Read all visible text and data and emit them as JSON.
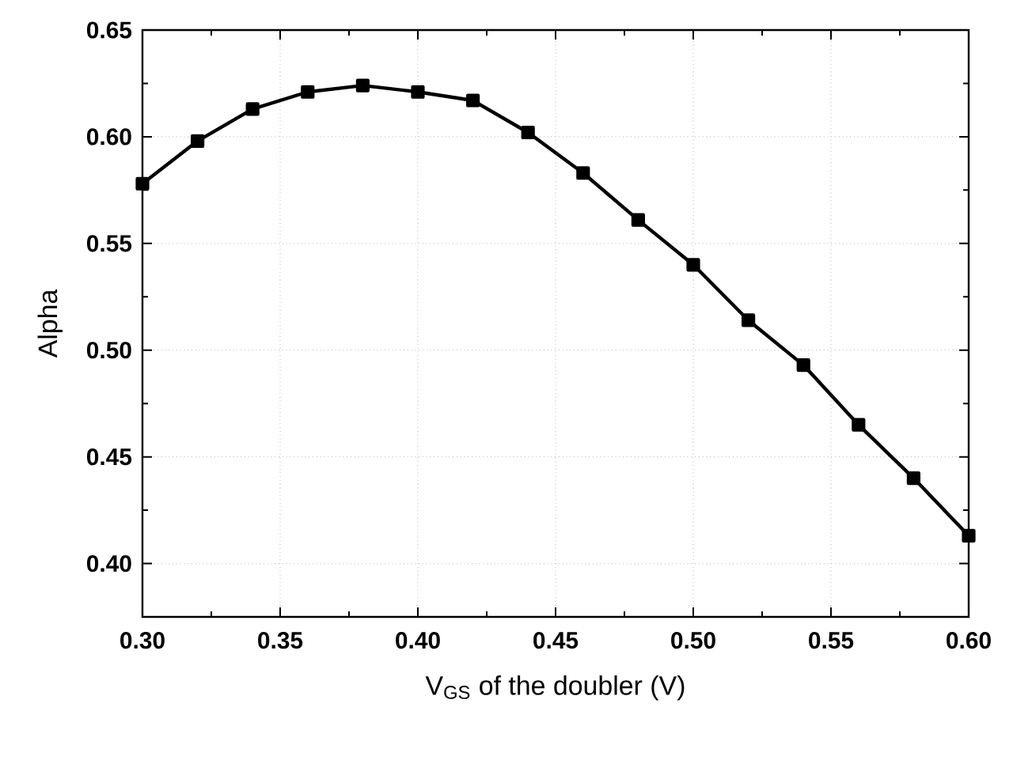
{
  "chart_data": {
    "type": "line",
    "xlabel": "V$_{GS}$ of the doubler (V)",
    "ylabel": "Alpha",
    "x": [
      0.3,
      0.32,
      0.34,
      0.36,
      0.38,
      0.4,
      0.42,
      0.44,
      0.46,
      0.48,
      0.5,
      0.52,
      0.54,
      0.56,
      0.58,
      0.6
    ],
    "series": [
      {
        "color": "#000000",
        "values": [
          0.578,
          0.598,
          0.613,
          0.621,
          0.624,
          0.621,
          0.617,
          0.602,
          0.583,
          0.561,
          0.54,
          0.514,
          0.493,
          0.465,
          0.44,
          0.413
        ]
      }
    ],
    "xlim": [
      0.3,
      0.6
    ],
    "ylim": [
      0.375,
      0.65
    ],
    "xticks": [
      {
        "value": 0.3,
        "label": "0.30"
      },
      {
        "value": 0.35,
        "label": "0.35"
      },
      {
        "value": 0.4,
        "label": "0.40"
      },
      {
        "value": 0.45,
        "label": "0.45"
      },
      {
        "value": 0.5,
        "label": "0.50"
      },
      {
        "value": 0.55,
        "label": "0.55"
      },
      {
        "value": 0.6,
        "label": "0.60"
      }
    ],
    "yticks": [
      {
        "value": 0.4,
        "label": "0.40"
      },
      {
        "value": 0.45,
        "label": "0.45"
      },
      {
        "value": 0.5,
        "label": "0.50"
      },
      {
        "value": 0.55,
        "label": "0.55"
      },
      {
        "value": 0.6,
        "label": "0.60"
      },
      {
        "value": 0.65,
        "label": "0.65"
      }
    ],
    "grid": true,
    "marker": "square",
    "line_style": "solid"
  }
}
